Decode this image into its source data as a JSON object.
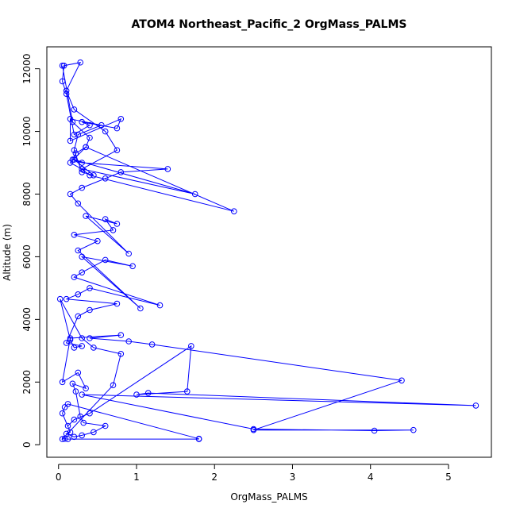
{
  "chart_data": {
    "type": "line",
    "title": "ATOM4 Northeast_Pacific_2 OrgMass_PALMS",
    "xlabel": "OrgMass_PALMS",
    "ylabel": "Altitude (m)",
    "xlim": [
      -0.15,
      5.55
    ],
    "ylim": [
      -400,
      12700
    ],
    "xticks": [
      "0",
      "1",
      "2",
      "3",
      "4",
      "5"
    ],
    "xtick_values": [
      0,
      1,
      2,
      3,
      4,
      5
    ],
    "yticks": [
      "0",
      "2000",
      "4000",
      "6000",
      "8000",
      "10000",
      "12000"
    ],
    "ytick_values": [
      0,
      2000,
      4000,
      6000,
      8000,
      10000,
      12000
    ],
    "grid": false,
    "legend": "none",
    "marker": "open-circle",
    "color": "#0000ff",
    "series": [
      {
        "x": [
          1.8,
          0.12,
          0.08,
          0.05,
          0.7,
          0.8,
          0.45,
          0.3,
          0.02,
          0.15,
          0.2,
          0.3,
          0.1,
          0.25,
          0.4,
          0.75,
          0.1,
          0.25,
          0.4,
          1.3,
          0.2,
          0.3,
          0.6,
          0.95,
          0.3,
          1.05,
          0.25,
          0.5,
          0.2,
          0.7,
          0.6,
          0.75,
          0.35,
          0.9,
          0.25,
          0.15,
          0.3,
          0.6,
          0.8,
          1.4,
          0.3,
          0.18,
          0.22,
          0.35,
          2.25,
          0.4,
          0.3,
          1.75,
          0.2,
          0.45,
          0.3,
          0.2,
          0.25,
          0.55,
          0.15,
          0.15,
          0.8,
          0.75,
          0.3,
          0.4,
          0.2,
          0.1,
          0.05,
          0.07,
          0.28,
          0.1,
          0.2,
          0.6,
          0.75,
          0.3,
          0.15,
          0.35,
          0.4,
          0.18,
          0.05
        ],
        "y": [
          180,
          180,
          190,
          180,
          1900,
          2900,
          3100,
          3400,
          4650,
          3350,
          3100,
          3150,
          3250,
          4100,
          4300,
          4500,
          4650,
          4800,
          5000,
          4450,
          5350,
          5500,
          5900,
          5700,
          6000,
          4350,
          6200,
          6500,
          6700,
          6850,
          7200,
          7050,
          7300,
          6100,
          7700,
          8000,
          8200,
          8500,
          8700,
          8800,
          9000,
          9100,
          9300,
          9500,
          7450,
          8600,
          8800,
          8000,
          9100,
          8600,
          8700,
          9400,
          9900,
          10200,
          10400,
          9700,
          10400,
          10100,
          10300,
          10200,
          9900,
          11200,
          11600,
          12100,
          12200,
          11300,
          10700,
          10000,
          9400,
          8800,
          9000,
          9500,
          9800,
          10300,
          12100
        ]
      },
      {
        "x": [
          0.12,
          0.2,
          0.4,
          1.7,
          1.65,
          1.0,
          1.15,
          5.35,
          0.3,
          2.5,
          4.05,
          4.55,
          2.5,
          4.4,
          1.2,
          0.9,
          0.4,
          0.8,
          0.15,
          0.05,
          0.25,
          0.35,
          0.18,
          0.22,
          0.28,
          0.32,
          0.6,
          0.45,
          0.3,
          0.2,
          0.1,
          0.15,
          0.05,
          0.08,
          0.12,
          1.8
        ],
        "y": [
          600,
          800,
          1000,
          3150,
          1700,
          1600,
          1650,
          1250,
          1600,
          500,
          450,
          470,
          470,
          2050,
          3200,
          3300,
          3400,
          3500,
          3400,
          2000,
          2300,
          1800,
          1950,
          1700,
          900,
          700,
          600,
          400,
          300,
          250,
          350,
          400,
          1000,
          1200,
          1300,
          190
        ]
      }
    ]
  }
}
